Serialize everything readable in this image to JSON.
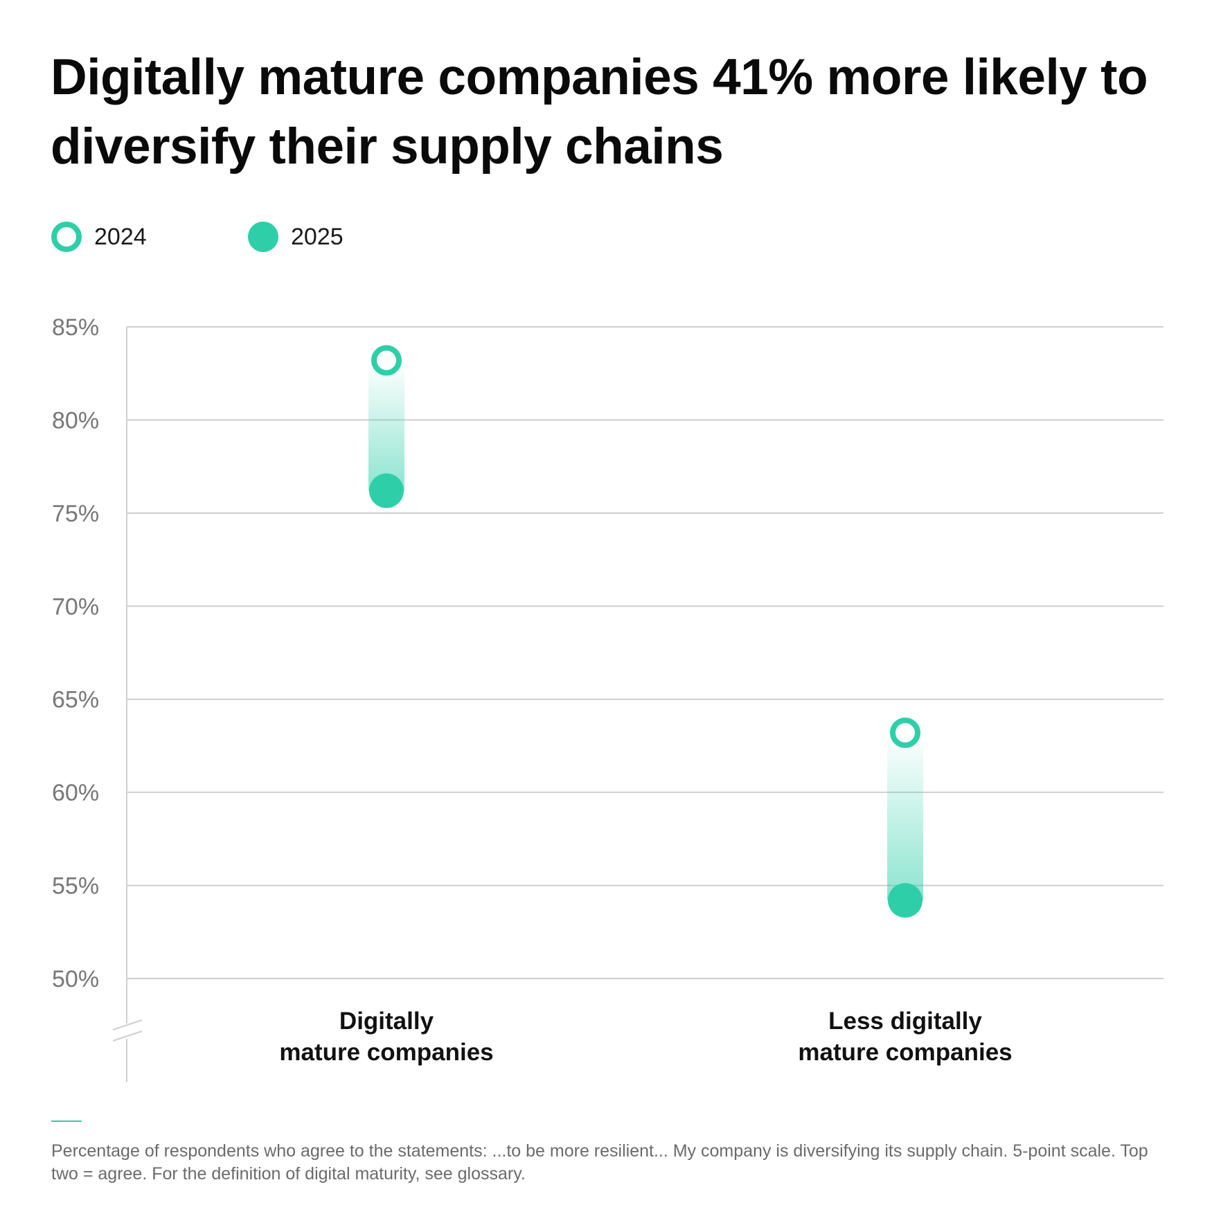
{
  "title": "Digitally mature companies 41% more likely to diversify their supply chains",
  "legend": {
    "items": [
      {
        "label": "2024",
        "marker": "hollow-circle"
      },
      {
        "label": "2025",
        "marker": "filled-circle"
      }
    ]
  },
  "chart_data": {
    "type": "dumbbell",
    "categories": [
      "Digitally mature companies",
      "Less digitally mature companies"
    ],
    "category_lines": [
      [
        "Digitally",
        "mature companies"
      ],
      [
        "Less digitally",
        "mature companies"
      ]
    ],
    "series": [
      {
        "name": "2024",
        "values": [
          83.2,
          63.2
        ]
      },
      {
        "name": "2025",
        "values": [
          76.2,
          54.2
        ]
      }
    ],
    "ylim": [
      50,
      85
    ],
    "yticks": [
      "50%",
      "55%",
      "60%",
      "65%",
      "70%",
      "75%",
      "80%",
      "85%"
    ],
    "y_axis_break": true,
    "grid": true,
    "legend_position": "top-left",
    "colors": {
      "accent": "#2ecfa8",
      "grid": "#cfcfcf",
      "axis_text": "#777777"
    }
  },
  "footnote": "Percentage of respondents who agree to the statements: ...to be more resilient... My company is diversifying its supply chain. 5-point scale. Top two = agree. For the definition of digital maturity, see glossary."
}
